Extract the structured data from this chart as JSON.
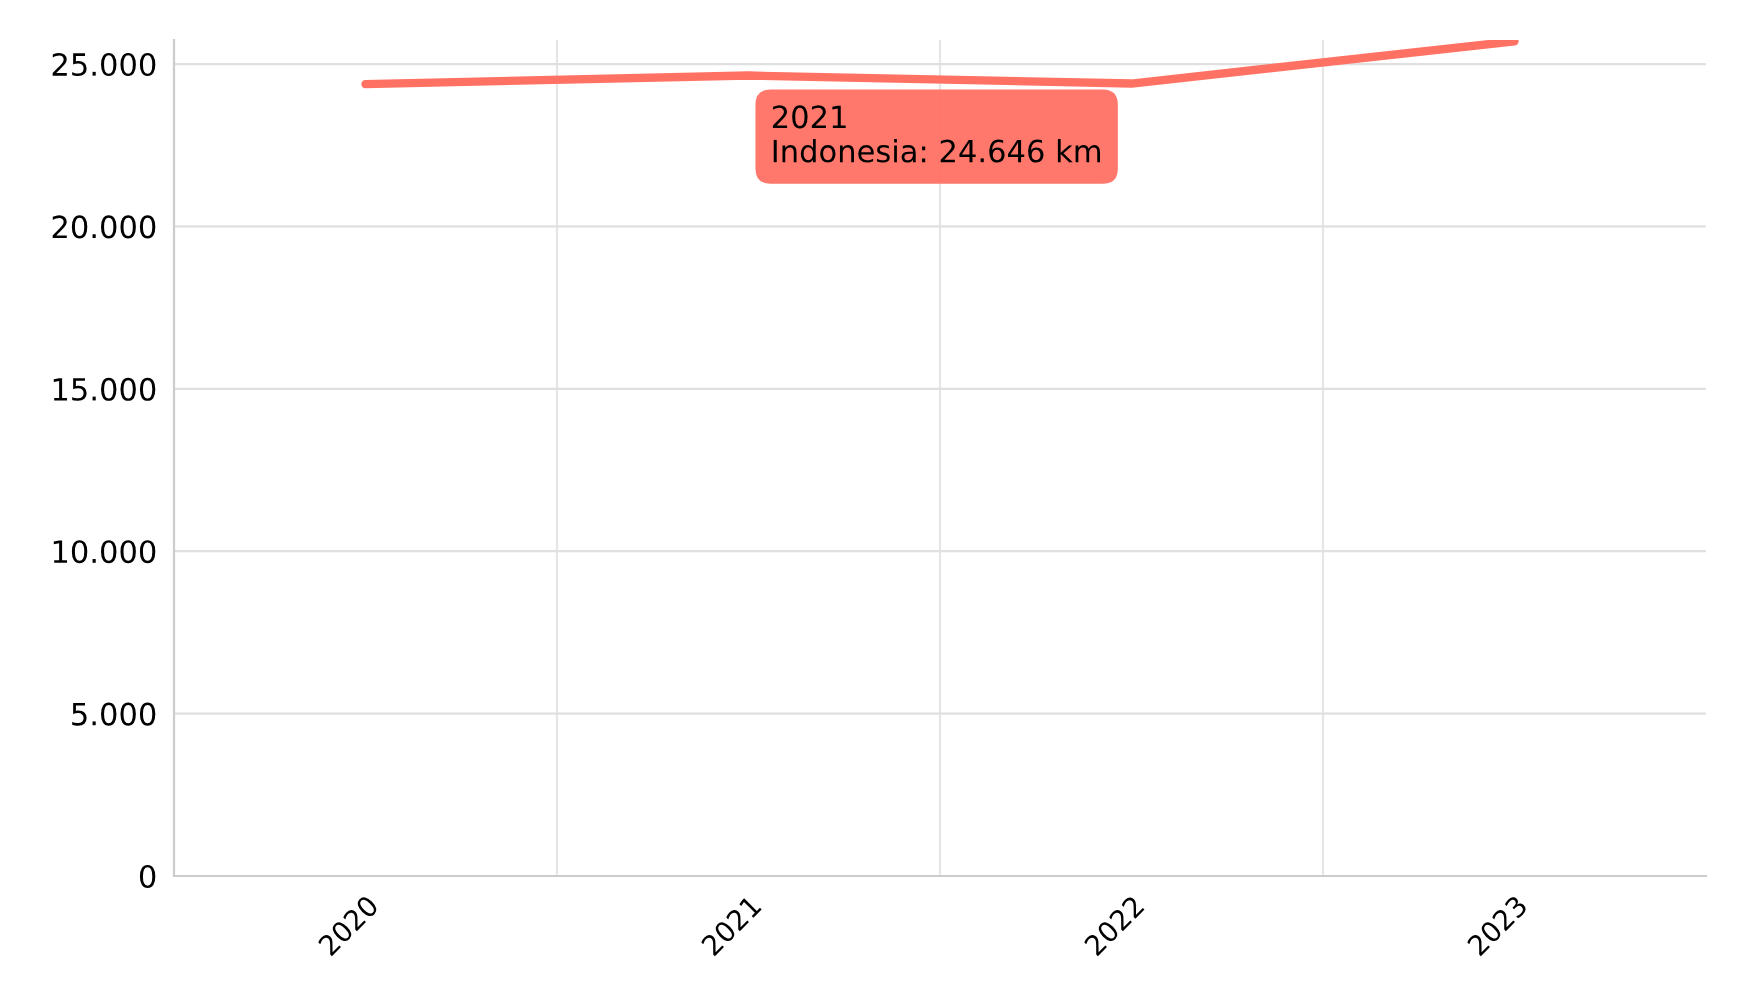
{
  "chart_data": {
    "type": "line",
    "categories": [
      "2020",
      "2021",
      "2022",
      "2023"
    ],
    "series": [
      {
        "color": "#ff7163",
        "values": [
          24380,
          24646,
          24400,
          25700
        ]
      }
    ],
    "ylim": [
      0,
      25740
    ],
    "yticks": [
      {
        "value": 0,
        "label": "0"
      },
      {
        "value": 5000,
        "label": "5.000"
      },
      {
        "value": 10000,
        "label": "10.000"
      },
      {
        "value": 15000,
        "label": "15.000"
      },
      {
        "value": 20000,
        "label": "20.000"
      },
      {
        "value": 25000,
        "label": "25.000"
      }
    ],
    "grid": true,
    "marker": "none",
    "line_style": "solid",
    "annotations": [
      {
        "text": "2021\nIndonesia: 24.646 km",
        "x": "2021",
        "y": 24646
      }
    ]
  }
}
